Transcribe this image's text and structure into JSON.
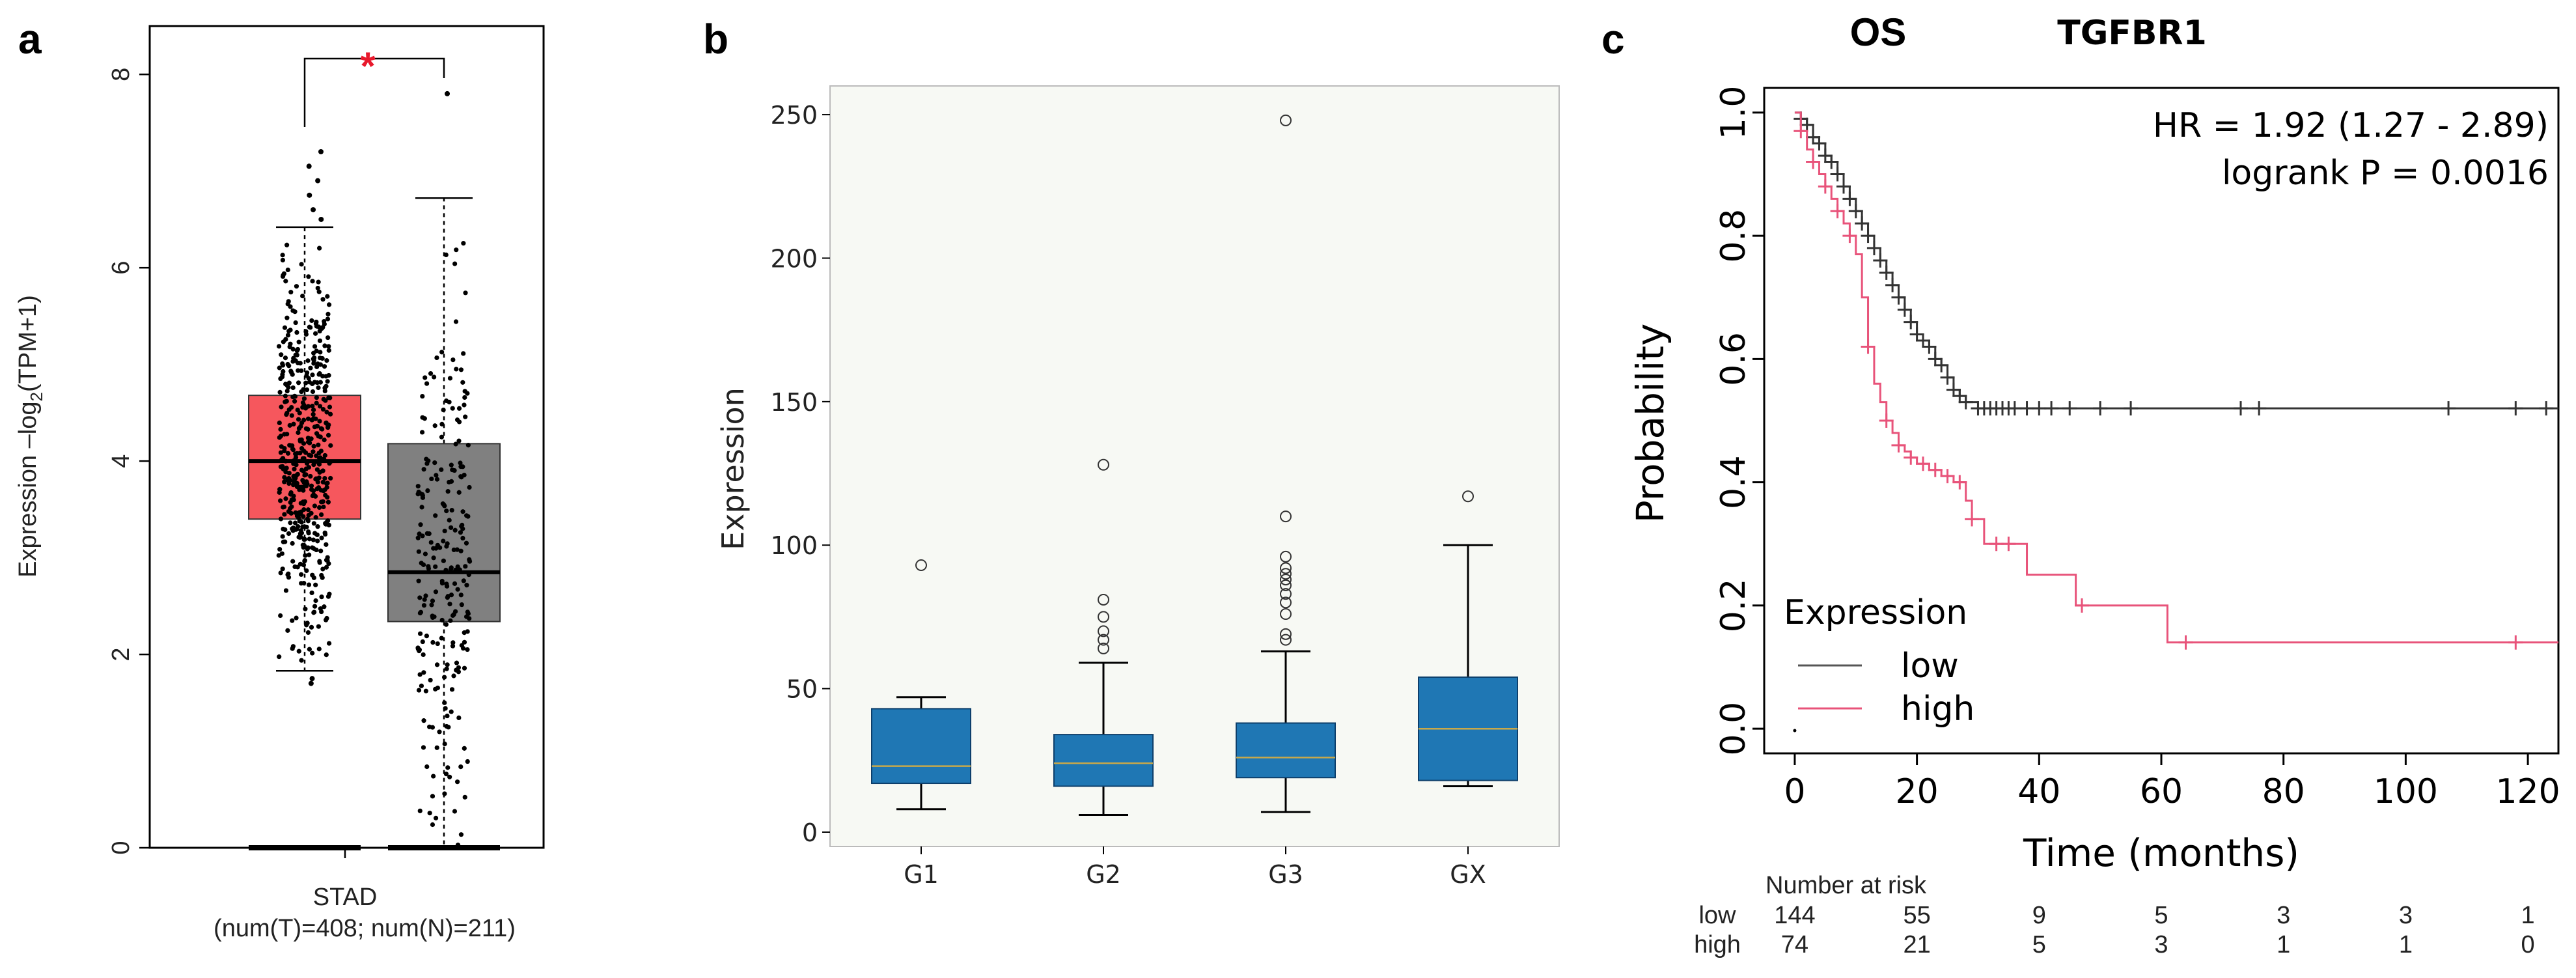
{
  "chart_data": [
    {
      "panel": "a",
      "type": "box",
      "ylabel_pre": "Expression –log",
      "ylabel_sub": "2",
      "ylabel_post": "(TPM+1)",
      "ylim": [
        0,
        8.5
      ],
      "yticks": [
        "0",
        "2",
        "4",
        "6",
        "8"
      ],
      "xlabel_line1": "STAD",
      "xlabel_line2": "(num(T)=408; num(N)=211)",
      "significance": "*",
      "colors": {
        "tumor": "#f6575d",
        "normal": "#808080",
        "star": "#e8192c"
      },
      "groups": [
        {
          "name": "T",
          "whisker_low": 1.83,
          "q1": 3.4,
          "median": 4.0,
          "q3": 4.68,
          "whisker_high": 6.42,
          "outliers": [
            6.5,
            6.6,
            6.75,
            6.9,
            7.05,
            7.2,
            1.75,
            1.7
          ]
        },
        {
          "name": "N",
          "whisker_low": 0.02,
          "q1": 2.34,
          "median": 2.85,
          "q3": 4.18,
          "whisker_high": 6.72,
          "outliers": [
            7.8
          ]
        }
      ]
    },
    {
      "panel": "b",
      "type": "box",
      "ylabel": "Expression",
      "ylim": [
        -5,
        260
      ],
      "yticks": [
        "0",
        "50",
        "100",
        "150",
        "200",
        "250"
      ],
      "categories": [
        "G1",
        "G2",
        "G3",
        "GX"
      ],
      "colors": {
        "box": "#1f77b4",
        "median": "#c8a84a",
        "background": "#f7f9f4"
      },
      "groups": [
        {
          "name": "G1",
          "whisker_low": 8,
          "q1": 17,
          "median": 23,
          "q3": 43,
          "whisker_high": 47,
          "outliers": [
            93
          ]
        },
        {
          "name": "G2",
          "whisker_low": 6,
          "q1": 16,
          "median": 24,
          "q3": 34,
          "whisker_high": 59,
          "outliers": [
            64,
            67,
            70,
            75,
            81,
            128
          ]
        },
        {
          "name": "G3",
          "whisker_low": 7,
          "q1": 19,
          "median": 26,
          "q3": 38,
          "whisker_high": 63,
          "outliers": [
            67,
            69,
            76,
            80,
            83,
            86,
            88,
            90,
            92,
            96,
            110,
            248
          ]
        },
        {
          "name": "GX",
          "whisker_low": 16,
          "q1": 18,
          "median": 36,
          "q3": 54,
          "whisker_high": 100,
          "outliers": [
            117
          ]
        }
      ]
    },
    {
      "panel": "c",
      "type": "line",
      "title_left": "OS",
      "title_right": "TGFBR1",
      "ylabel": "Probability",
      "xlabel": "Time (months)",
      "xlim": [
        -5,
        125
      ],
      "ylim": [
        -0.04,
        1.04
      ],
      "xticks": [
        "0",
        "20",
        "40",
        "60",
        "80",
        "100",
        "120"
      ],
      "yticks": [
        "0.0",
        "0.2",
        "0.4",
        "0.6",
        "0.8",
        "1.0"
      ],
      "annotation_line1": "HR = 1.92 (1.27 - 2.89)",
      "annotation_line2": "logrank P = 0.0016",
      "legend_title": "Expression",
      "legend_placement": "bottom-left",
      "colors": {
        "low": "#000000",
        "high": "#e8537a"
      },
      "series": [
        {
          "name": "low",
          "x": [
            0,
            1,
            2,
            3,
            4,
            5,
            6,
            7,
            8,
            9,
            10,
            11,
            12,
            13,
            14,
            15,
            16,
            17,
            18,
            19,
            20,
            21,
            22,
            23,
            24,
            25,
            26,
            27,
            28,
            30,
            36,
            125
          ],
          "y": [
            1.0,
            0.99,
            0.98,
            0.96,
            0.95,
            0.93,
            0.92,
            0.9,
            0.88,
            0.86,
            0.84,
            0.82,
            0.8,
            0.78,
            0.76,
            0.74,
            0.72,
            0.7,
            0.68,
            0.66,
            0.64,
            0.63,
            0.62,
            0.6,
            0.59,
            0.57,
            0.55,
            0.54,
            0.53,
            0.52,
            0.52,
            0.52
          ],
          "censor_x": [
            1,
            2,
            3,
            4,
            5,
            6,
            7,
            8,
            9,
            10,
            11,
            12,
            13,
            14,
            15,
            16,
            17,
            18,
            19,
            20,
            21,
            22,
            23,
            24,
            25,
            26,
            27,
            28,
            30,
            31,
            32,
            33,
            34,
            35,
            36,
            38,
            40,
            42,
            45,
            50,
            55,
            73,
            76,
            107,
            118,
            123
          ]
        },
        {
          "name": "high",
          "x": [
            0,
            1,
            2,
            3,
            4,
            5,
            6,
            7,
            8,
            9,
            10,
            11,
            12,
            13,
            14,
            15,
            16,
            17,
            18,
            19,
            20,
            22,
            24,
            26,
            28,
            29,
            31,
            34,
            38,
            40,
            46,
            48,
            60,
            61,
            125
          ],
          "y": [
            1.0,
            0.97,
            0.94,
            0.92,
            0.9,
            0.88,
            0.86,
            0.84,
            0.82,
            0.8,
            0.77,
            0.7,
            0.62,
            0.56,
            0.53,
            0.5,
            0.48,
            0.46,
            0.45,
            0.44,
            0.43,
            0.42,
            0.41,
            0.4,
            0.37,
            0.34,
            0.3,
            0.3,
            0.25,
            0.25,
            0.2,
            0.2,
            0.2,
            0.14,
            0.14
          ],
          "censor_x": [
            1,
            3,
            5,
            7,
            9,
            12,
            15,
            17,
            19,
            21,
            23,
            25,
            27,
            29,
            33,
            35,
            47,
            64,
            118
          ]
        }
      ],
      "risk_table": {
        "title": "Number at risk",
        "rows": [
          {
            "label": "low",
            "values": [
              "144",
              "55",
              "9",
              "5",
              "3",
              "3",
              "1"
            ]
          },
          {
            "label": "high",
            "values": [
              "74",
              "21",
              "5",
              "3",
              "1",
              "1",
              "0"
            ]
          }
        ]
      }
    }
  ],
  "panel_labels": [
    "a",
    "b",
    "c"
  ]
}
